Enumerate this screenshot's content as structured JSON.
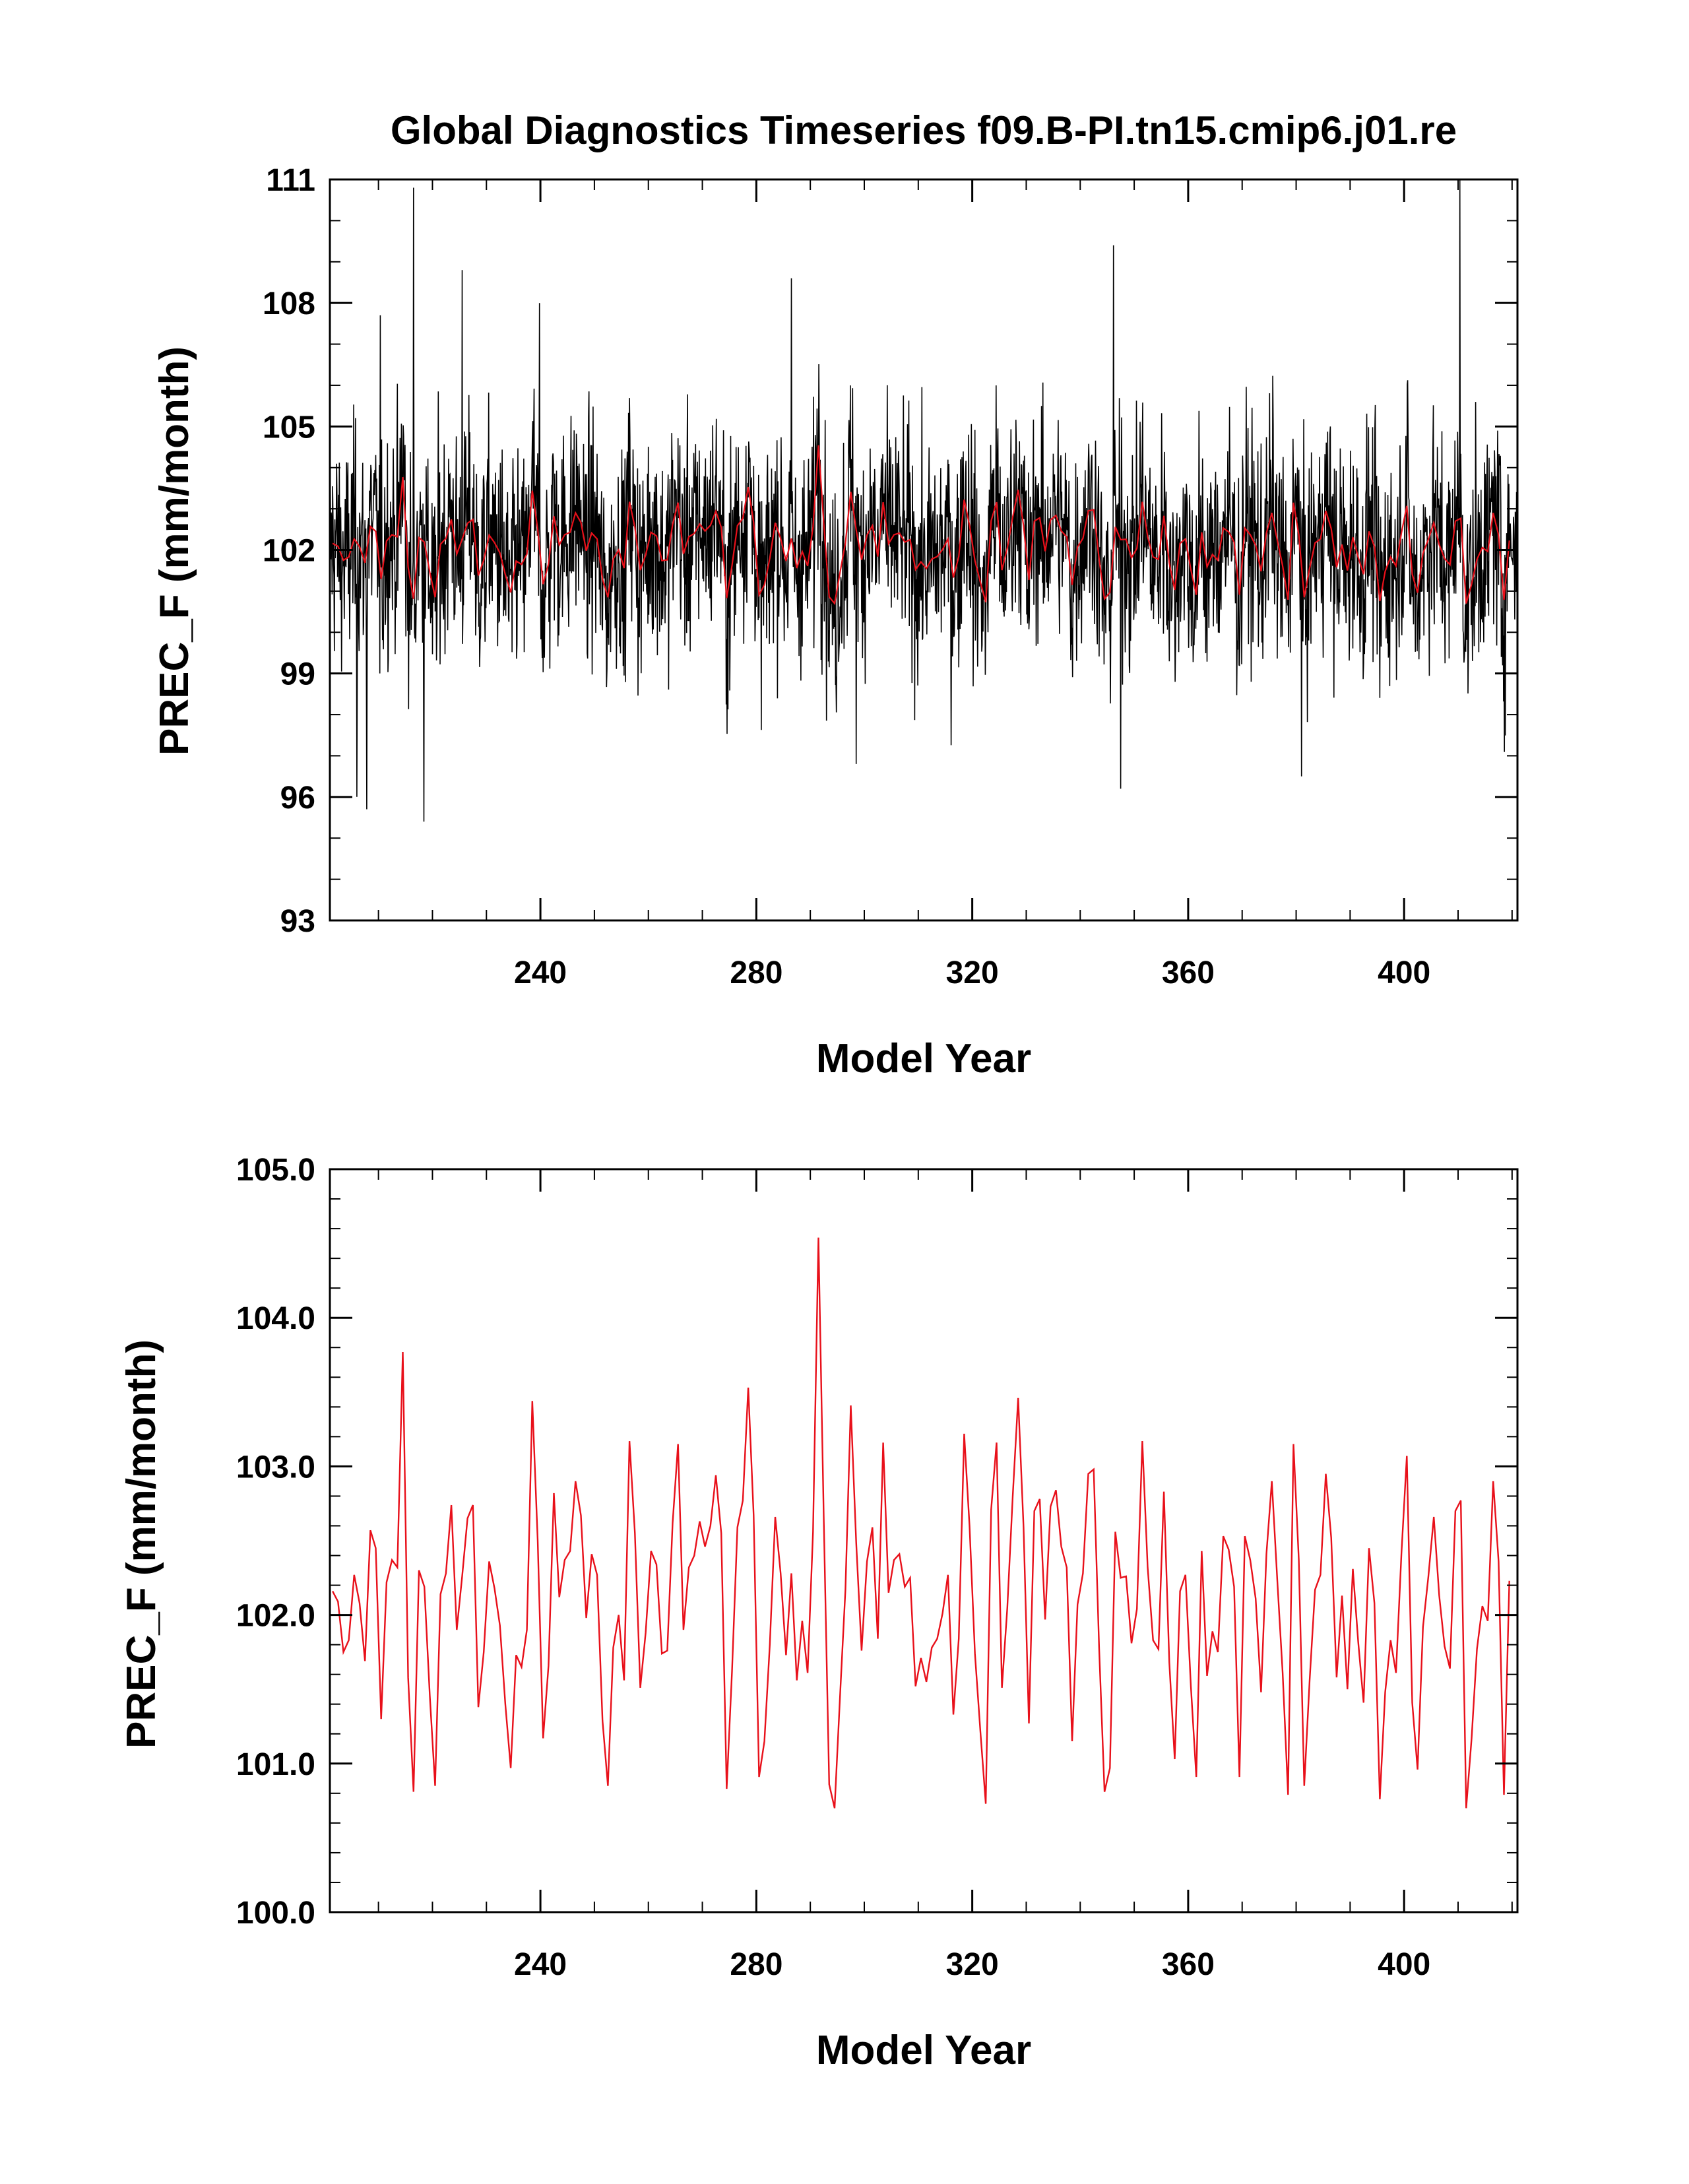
{
  "title": "Global Diagnostics Timeseries f09.B-PI.tn15.cmip6.j01.re",
  "colors": {
    "monthly": "#000000",
    "annual": "#e8101a",
    "background": "#ffffff"
  },
  "chart_data": [
    {
      "type": "line",
      "xlabel": "Model Year",
      "ylabel": "PREC_F (mm/month)",
      "xlim": [
        201,
        421
      ],
      "ylim": [
        93,
        111
      ],
      "xticks": [
        240,
        280,
        320,
        360,
        400
      ],
      "xtick_labels": [
        "240",
        "280",
        "320",
        "360",
        "400"
      ],
      "yticks": [
        93,
        96,
        99,
        102,
        105,
        108,
        111
      ],
      "ytick_labels": [
        "93",
        "96",
        "99",
        "102",
        "105",
        "108",
        "111"
      ],
      "ytick_step": 3,
      "yminor_step": 1,
      "grid": false,
      "monthly_series": {
        "name": "",
        "resolution": "monthly",
        "x_start": 201,
        "count": 2640,
        "mean": 102.0,
        "typical_range": [
          98.2,
          106.2
        ],
        "min": 95.4,
        "max": 111.0,
        "peaks": [
          [
            216.5,
            110.8
          ],
          [
            210.3,
            107.7
          ],
          [
            225.5,
            108.8
          ],
          [
            239.8,
            108.0
          ],
          [
            286.5,
            108.6
          ],
          [
            346.2,
            109.4
          ],
          [
            410.3,
            111.0
          ]
        ],
        "troughs": [
          [
            206.0,
            96.0
          ],
          [
            207.8,
            95.7
          ],
          [
            218.4,
            95.4
          ],
          [
            347.5,
            96.2
          ],
          [
            381.0,
            96.5
          ],
          [
            298.5,
            96.8
          ]
        ]
      },
      "annual_series_ref": "annual"
    },
    {
      "type": "line",
      "xlabel": "Model Year",
      "ylabel": "PREC_F (mm/month)",
      "xlim": [
        201,
        421
      ],
      "ylim": [
        100.0,
        105.0
      ],
      "xticks": [
        240,
        280,
        320,
        360,
        400
      ],
      "xtick_labels": [
        "240",
        "280",
        "320",
        "360",
        "400"
      ],
      "yticks": [
        100.0,
        101.0,
        102.0,
        103.0,
        104.0,
        105.0
      ],
      "ytick_labels": [
        "100.0",
        "101.0",
        "102.0",
        "103.0",
        "104.0",
        "105.0"
      ],
      "yminor_step": 0.2,
      "grid": false,
      "series": [
        {
          "name": "",
          "ref": "annual"
        }
      ]
    }
  ],
  "annual": {
    "x_start": 201,
    "x_step": 1,
    "values": [
      102.16,
      102.09,
      101.75,
      101.83,
      102.27,
      102.08,
      101.69,
      102.57,
      102.45,
      101.3,
      102.22,
      102.37,
      102.32,
      103.77,
      101.58,
      100.81,
      102.3,
      102.19,
      101.46,
      100.85,
      102.14,
      102.28,
      102.74,
      101.9,
      102.26,
      102.65,
      102.74,
      101.38,
      101.75,
      102.36,
      102.18,
      101.93,
      101.4,
      100.97,
      101.73,
      101.65,
      101.9,
      103.44,
      102.5,
      101.17,
      101.66,
      102.82,
      102.12,
      102.37,
      102.43,
      102.9,
      102.67,
      101.98,
      102.41,
      102.27,
      101.29,
      100.85,
      101.78,
      102.0,
      101.56,
      103.17,
      102.55,
      101.51,
      101.88,
      102.43,
      102.34,
      101.74,
      101.76,
      102.62,
      103.15,
      101.9,
      102.32,
      102.4,
      102.63,
      102.46,
      102.6,
      102.94,
      102.55,
      100.83,
      101.62,
      102.59,
      102.77,
      103.53,
      102.67,
      100.91,
      101.15,
      101.8,
      102.66,
      102.28,
      101.73,
      102.28,
      101.56,
      101.96,
      101.61,
      102.56,
      104.54,
      102.64,
      100.86,
      100.7,
      101.45,
      102.17,
      103.41,
      102.49,
      101.76,
      102.36,
      102.59,
      101.84,
      103.16,
      102.15,
      102.37,
      102.41,
      102.19,
      102.25,
      101.52,
      101.71,
      101.55,
      101.78,
      101.84,
      102.01,
      102.27,
      101.33,
      101.84,
      103.22,
      102.6,
      101.74,
      101.22,
      100.73,
      102.71,
      103.16,
      101.51,
      102.05,
      102.8,
      103.46,
      102.59,
      101.27,
      102.7,
      102.78,
      101.97,
      102.73,
      102.84,
      102.46,
      102.32,
      101.15,
      102.07,
      102.28,
      102.95,
      102.98,
      101.78,
      100.81,
      100.97,
      102.56,
      102.25,
      102.26,
      101.81,
      102.04,
      103.17,
      102.32,
      101.83,
      101.77,
      102.83,
      101.68,
      101.03,
      102.16,
      102.27,
      101.52,
      100.91,
      102.43,
      101.59,
      101.89,
      101.75,
      102.53,
      102.44,
      102.19,
      100.91,
      102.53,
      102.37,
      102.11,
      101.48,
      102.41,
      102.9,
      102.24,
      101.61,
      100.79,
      103.15,
      102.37,
      100.85,
      101.56,
      102.17,
      102.27,
      102.95,
      102.52,
      101.58,
      102.13,
      101.5,
      102.31,
      101.82,
      101.41,
      102.45,
      102.08,
      100.76,
      101.48,
      101.83,
      101.61,
      102.41,
      103.07,
      101.41,
      100.96,
      101.92,
      102.26,
      102.66,
      102.13,
      101.79,
      101.64,
      102.7,
      102.77,
      100.7,
      101.17,
      101.77,
      102.06,
      101.96,
      102.9,
      102.36,
      100.79,
      102.23
    ]
  }
}
